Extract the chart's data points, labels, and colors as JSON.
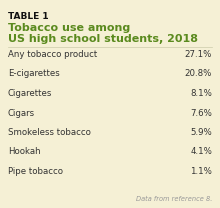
{
  "table_label": "TABLE 1",
  "title_line1": "Tobacco use among",
  "title_line2": "US high school students, 2018",
  "rows": [
    [
      "Any tobacco product",
      "27.1%"
    ],
    [
      "E-cigarettes",
      "20.8%"
    ],
    [
      "Cigarettes",
      "8.1%"
    ],
    [
      "Cigars",
      "7.6%"
    ],
    [
      "Smokeless tobacco",
      "5.9%"
    ],
    [
      "Hookah",
      "4.1%"
    ],
    [
      "Pipe tobacco",
      "1.1%"
    ]
  ],
  "footnote": "Data from reference 8.",
  "bg_color": "#f5f0d5",
  "title_color": "#5a8a1e",
  "table_label_color": "#111111",
  "row_text_color": "#333333",
  "footnote_color": "#999999",
  "table_label_fontsize": 6.5,
  "title_fontsize": 8.0,
  "row_fontsize": 6.2,
  "footnote_fontsize": 4.8
}
